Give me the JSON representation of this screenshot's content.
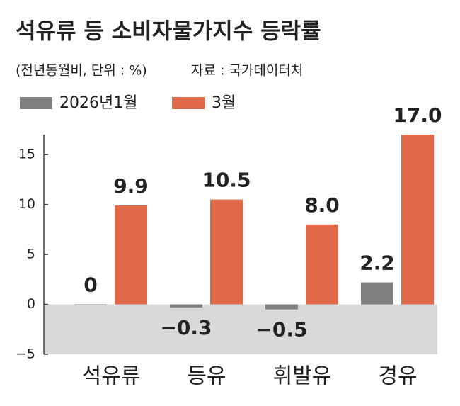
{
  "chart_data": {
    "type": "bar",
    "title": "석유류 등 소비자물가지수 등락률",
    "subtitle": "(전년동월비, 단위 : %)",
    "source": "자료 : 국가데이터처",
    "categories": [
      "석유류",
      "등유",
      "휘발유",
      "경유"
    ],
    "series": [
      {
        "name": "2026년1월",
        "color": "#7f7f7f",
        "values": [
          0,
          -0.3,
          -0.5,
          2.2
        ],
        "value_labels": [
          "0",
          "−0.3",
          "−0.5",
          "2.2"
        ]
      },
      {
        "name": "3월",
        "color": "#e0694a",
        "values": [
          9.9,
          10.5,
          8.0,
          17.0
        ],
        "value_labels": [
          "9.9",
          "10.5",
          "8.0",
          "17.0"
        ]
      }
    ],
    "ylim": [
      -5,
      17
    ],
    "yticks": [
      {
        "value": -5,
        "label": "−5"
      },
      0,
      5,
      10,
      15
    ],
    "negative_region_color": "#d9d9d9"
  }
}
